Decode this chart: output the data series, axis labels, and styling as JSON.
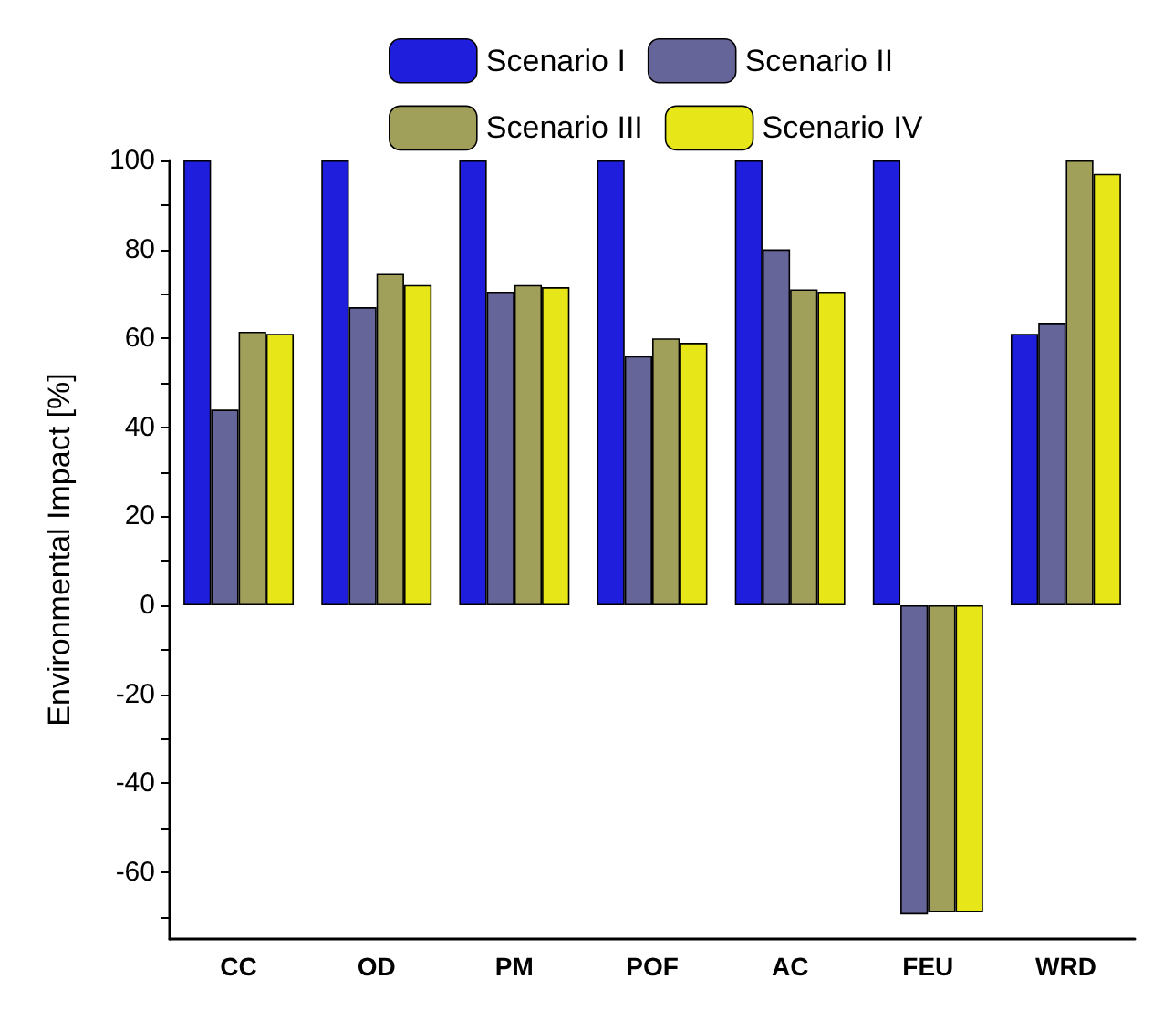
{
  "chart_data": {
    "type": "bar",
    "ylabel": "Environmental Impact [%]",
    "categories": [
      "CC",
      "OD",
      "PM",
      "POF",
      "AC",
      "FEU",
      "WRD"
    ],
    "series": [
      {
        "name": "Scenario I",
        "color": "#1e1edc",
        "values": [
          100,
          100,
          100,
          100,
          100,
          100,
          61
        ]
      },
      {
        "name": "Scenario II",
        "color": "#65659a",
        "values": [
          44,
          67,
          70.5,
          56,
          80,
          -69.5,
          63.5
        ]
      },
      {
        "name": "Scenario III",
        "color": "#a0a05a",
        "values": [
          61.5,
          74.5,
          72,
          60,
          71,
          -69,
          100
        ]
      },
      {
        "name": "Scenario IV",
        "color": "#e6e619",
        "values": [
          61,
          72,
          71.5,
          59,
          70.5,
          -69,
          97
        ]
      }
    ],
    "ylim": [
      -75,
      100
    ],
    "yticks": [
      {
        "value": -70,
        "label": null
      },
      -60,
      {
        "value": -50,
        "label": null
      },
      -40,
      {
        "value": -30,
        "label": null
      },
      -20,
      {
        "value": -10,
        "label": null
      },
      0,
      {
        "value": 10,
        "label": null
      },
      20,
      {
        "value": 30,
        "label": null
      },
      40,
      {
        "value": 50,
        "label": null
      },
      60,
      {
        "value": 70,
        "label": null
      },
      80,
      {
        "value": 90,
        "label": null
      },
      100
    ],
    "grid": false,
    "legend": "top"
  }
}
